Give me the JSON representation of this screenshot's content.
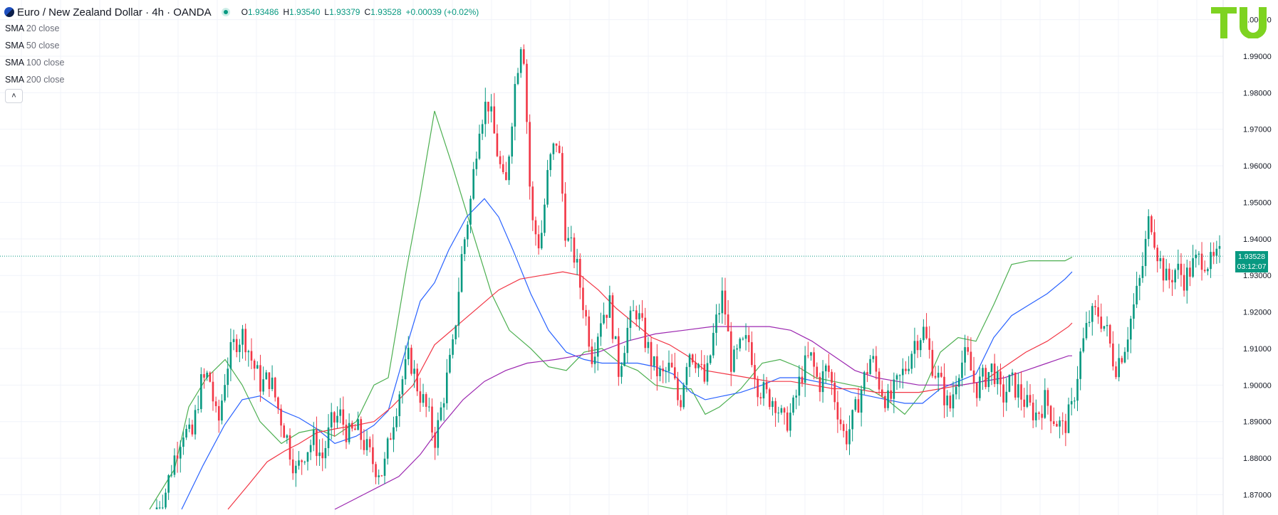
{
  "header": {
    "symbol_title": "Euro / New Zealand Dollar · 4h · OANDA",
    "ohlc": {
      "open_label": "O",
      "open": "1.93486",
      "high_label": "H",
      "high": "1.93540",
      "low_label": "L",
      "low": "1.93379",
      "close_label": "C",
      "close": "1.93528",
      "change": "+0.00039 (+0.02%)"
    }
  },
  "indicators": [
    {
      "name": "SMA",
      "params": "20 close",
      "color": "#4caf50"
    },
    {
      "name": "SMA",
      "params": "50 close",
      "color": "#2962ff"
    },
    {
      "name": "SMA",
      "params": "100 close",
      "color": "#f23645"
    },
    {
      "name": "SMA",
      "params": "200 close",
      "color": "#9c27b0"
    }
  ],
  "collapse_icon": "chevron-up-icon",
  "price_badge": {
    "price": "1.93528",
    "countdown": "03:12:07"
  },
  "logo_text": "TU",
  "colors": {
    "up": "#089981",
    "down": "#f23645",
    "logo": "#7ed321"
  },
  "chart_data": {
    "type": "candlestick",
    "title": "Euro / New Zealand Dollar · 4h · OANDA",
    "ylim": [
      1.866,
      2.0005
    ],
    "yticks": [
      "1.87000",
      "1.88000",
      "1.89000",
      "1.90000",
      "1.91000",
      "1.92000",
      "1.93000",
      "1.94000",
      "1.95000",
      "1.96000",
      "1.97000",
      "1.98000",
      "1.99000",
      "2.00000"
    ],
    "grid": true,
    "current_price": 1.93528,
    "close_path": [
      1.866,
      1.871,
      1.88,
      1.888,
      1.885,
      1.9,
      1.903,
      1.888,
      1.905,
      1.912,
      1.914,
      1.906,
      1.9,
      1.902,
      1.893,
      1.885,
      1.876,
      1.882,
      1.885,
      1.88,
      1.889,
      1.892,
      1.886,
      1.888,
      1.883,
      1.878,
      1.876,
      1.889,
      1.9,
      1.908,
      1.899,
      1.893,
      1.885,
      1.898,
      1.91,
      1.935,
      1.95,
      1.972,
      1.978,
      1.965,
      1.952,
      1.98,
      1.998,
      1.945,
      1.938,
      1.96,
      1.968,
      1.94,
      1.935,
      1.922,
      1.908,
      1.919,
      1.922,
      1.904,
      1.915,
      1.921,
      1.913,
      1.905,
      1.902,
      1.905,
      1.894,
      1.91,
      1.907,
      1.9,
      1.915,
      1.925,
      1.905,
      1.91,
      1.912,
      1.9,
      1.897,
      1.896,
      1.889,
      1.893,
      1.903,
      1.908,
      1.9,
      1.905,
      1.895,
      1.885,
      1.891,
      1.9,
      1.908,
      1.9,
      1.895,
      1.9,
      1.905,
      1.912,
      1.915,
      1.906,
      1.9,
      1.893,
      1.905,
      1.908,
      1.899,
      1.902,
      1.905,
      1.896,
      1.901,
      1.898,
      1.894,
      1.892,
      1.896,
      1.891,
      1.888,
      1.893,
      1.908,
      1.918,
      1.92,
      1.915,
      1.905,
      1.91,
      1.92,
      1.93,
      1.947,
      1.935,
      1.928,
      1.932,
      1.929,
      1.933,
      1.935,
      1.933,
      1.935
    ],
    "series": [
      {
        "name": "SMA 20 close",
        "color": "#4caf50",
        "points": [
          [
            210,
            1.866
          ],
          [
            245,
            1.877
          ],
          [
            265,
            1.894
          ],
          [
            290,
            1.902
          ],
          [
            316,
            1.907
          ],
          [
            340,
            1.9
          ],
          [
            365,
            1.89
          ],
          [
            395,
            1.884
          ],
          [
            420,
            1.887
          ],
          [
            445,
            1.888
          ],
          [
            470,
            1.886
          ],
          [
            500,
            1.89
          ],
          [
            525,
            1.9
          ],
          [
            545,
            1.902
          ],
          [
            570,
            1.931
          ],
          [
            590,
            1.952
          ],
          [
            610,
            1.975
          ],
          [
            635,
            1.96
          ],
          [
            660,
            1.944
          ],
          [
            690,
            1.925
          ],
          [
            715,
            1.915
          ],
          [
            745,
            1.91
          ],
          [
            770,
            1.905
          ],
          [
            795,
            1.904
          ],
          [
            820,
            1.909
          ],
          [
            845,
            1.91
          ],
          [
            870,
            1.906
          ],
          [
            895,
            1.904
          ],
          [
            920,
            1.9
          ],
          [
            945,
            1.899
          ],
          [
            970,
            1.899
          ],
          [
            990,
            1.892
          ],
          [
            1010,
            1.894
          ],
          [
            1040,
            1.899
          ],
          [
            1070,
            1.906
          ],
          [
            1095,
            1.907
          ],
          [
            1120,
            1.905
          ],
          [
            1145,
            1.902
          ],
          [
            1170,
            1.901
          ],
          [
            1195,
            1.9
          ],
          [
            1220,
            1.899
          ],
          [
            1245,
            1.896
          ],
          [
            1270,
            1.892
          ],
          [
            1295,
            1.898
          ],
          [
            1320,
            1.909
          ],
          [
            1345,
            1.913
          ],
          [
            1370,
            1.912
          ],
          [
            1395,
            1.922
          ],
          [
            1420,
            1.933
          ],
          [
            1445,
            1.934
          ],
          [
            1470,
            1.934
          ],
          [
            1495,
            1.934
          ],
          [
            1505,
            1.935
          ]
        ]
      },
      {
        "name": "SMA 50 close",
        "color": "#2962ff",
        "points": [
          [
            255,
            1.866
          ],
          [
            285,
            1.878
          ],
          [
            315,
            1.889
          ],
          [
            340,
            1.896
          ],
          [
            365,
            1.897
          ],
          [
            395,
            1.893
          ],
          [
            420,
            1.891
          ],
          [
            445,
            1.888
          ],
          [
            470,
            1.884
          ],
          [
            500,
            1.886
          ],
          [
            525,
            1.889
          ],
          [
            545,
            1.893
          ],
          [
            570,
            1.91
          ],
          [
            590,
            1.923
          ],
          [
            610,
            1.928
          ],
          [
            630,
            1.937
          ],
          [
            655,
            1.946
          ],
          [
            680,
            1.951
          ],
          [
            700,
            1.946
          ],
          [
            720,
            1.937
          ],
          [
            745,
            1.925
          ],
          [
            770,
            1.915
          ],
          [
            795,
            1.909
          ],
          [
            820,
            1.907
          ],
          [
            845,
            1.906
          ],
          [
            870,
            1.906
          ],
          [
            895,
            1.906
          ],
          [
            920,
            1.905
          ],
          [
            945,
            1.903
          ],
          [
            970,
            1.898
          ],
          [
            990,
            1.896
          ],
          [
            1015,
            1.897
          ],
          [
            1040,
            1.898
          ],
          [
            1070,
            1.9
          ],
          [
            1095,
            1.902
          ],
          [
            1120,
            1.902
          ],
          [
            1145,
            1.901
          ],
          [
            1170,
            1.9
          ],
          [
            1195,
            1.898
          ],
          [
            1220,
            1.897
          ],
          [
            1245,
            1.896
          ],
          [
            1270,
            1.895
          ],
          [
            1295,
            1.895
          ],
          [
            1320,
            1.899
          ],
          [
            1345,
            1.901
          ],
          [
            1370,
            1.903
          ],
          [
            1395,
            1.913
          ],
          [
            1420,
            1.919
          ],
          [
            1445,
            1.922
          ],
          [
            1470,
            1.925
          ],
          [
            1495,
            1.929
          ],
          [
            1505,
            1.931
          ]
        ]
      },
      {
        "name": "SMA 100 close",
        "color": "#f23645",
        "points": [
          [
            320,
            1.866
          ],
          [
            350,
            1.873
          ],
          [
            375,
            1.879
          ],
          [
            400,
            1.882
          ],
          [
            420,
            1.884
          ],
          [
            445,
            1.887
          ],
          [
            470,
            1.888
          ],
          [
            500,
            1.889
          ],
          [
            525,
            1.89
          ],
          [
            550,
            1.894
          ],
          [
            580,
            1.9
          ],
          [
            610,
            1.911
          ],
          [
            640,
            1.916
          ],
          [
            670,
            1.921
          ],
          [
            700,
            1.926
          ],
          [
            730,
            1.929
          ],
          [
            760,
            1.93
          ],
          [
            790,
            1.931
          ],
          [
            815,
            1.93
          ],
          [
            840,
            1.926
          ],
          [
            865,
            1.921
          ],
          [
            890,
            1.917
          ],
          [
            915,
            1.913
          ],
          [
            940,
            1.911
          ],
          [
            965,
            1.908
          ],
          [
            990,
            1.904
          ],
          [
            1020,
            1.903
          ],
          [
            1050,
            1.902
          ],
          [
            1080,
            1.901
          ],
          [
            1110,
            1.901
          ],
          [
            1140,
            1.9
          ],
          [
            1170,
            1.899
          ],
          [
            1200,
            1.899
          ],
          [
            1230,
            1.898
          ],
          [
            1260,
            1.898
          ],
          [
            1290,
            1.898
          ],
          [
            1320,
            1.899
          ],
          [
            1350,
            1.9
          ],
          [
            1380,
            1.901
          ],
          [
            1410,
            1.905
          ],
          [
            1440,
            1.909
          ],
          [
            1470,
            1.912
          ],
          [
            1500,
            1.916
          ],
          [
            1505,
            1.917
          ]
        ]
      },
      {
        "name": "SMA 200 close",
        "color": "#9c27b0",
        "points": [
          [
            470,
            1.866
          ],
          [
            500,
            1.869
          ],
          [
            530,
            1.872
          ],
          [
            560,
            1.875
          ],
          [
            590,
            1.881
          ],
          [
            620,
            1.889
          ],
          [
            650,
            1.896
          ],
          [
            680,
            1.901
          ],
          [
            710,
            1.904
          ],
          [
            740,
            1.906
          ],
          [
            780,
            1.907
          ],
          [
            810,
            1.908
          ],
          [
            840,
            1.909
          ],
          [
            880,
            1.912
          ],
          [
            920,
            1.914
          ],
          [
            960,
            1.915
          ],
          [
            1000,
            1.916
          ],
          [
            1040,
            1.916
          ],
          [
            1080,
            1.916
          ],
          [
            1110,
            1.915
          ],
          [
            1140,
            1.912
          ],
          [
            1170,
            1.908
          ],
          [
            1200,
            1.904
          ],
          [
            1230,
            1.902
          ],
          [
            1260,
            1.901
          ],
          [
            1290,
            1.9
          ],
          [
            1320,
            1.9
          ],
          [
            1350,
            1.9
          ],
          [
            1380,
            1.901
          ],
          [
            1410,
            1.902
          ],
          [
            1440,
            1.904
          ],
          [
            1470,
            1.906
          ],
          [
            1500,
            1.908
          ],
          [
            1505,
            1.908
          ]
        ]
      }
    ]
  }
}
